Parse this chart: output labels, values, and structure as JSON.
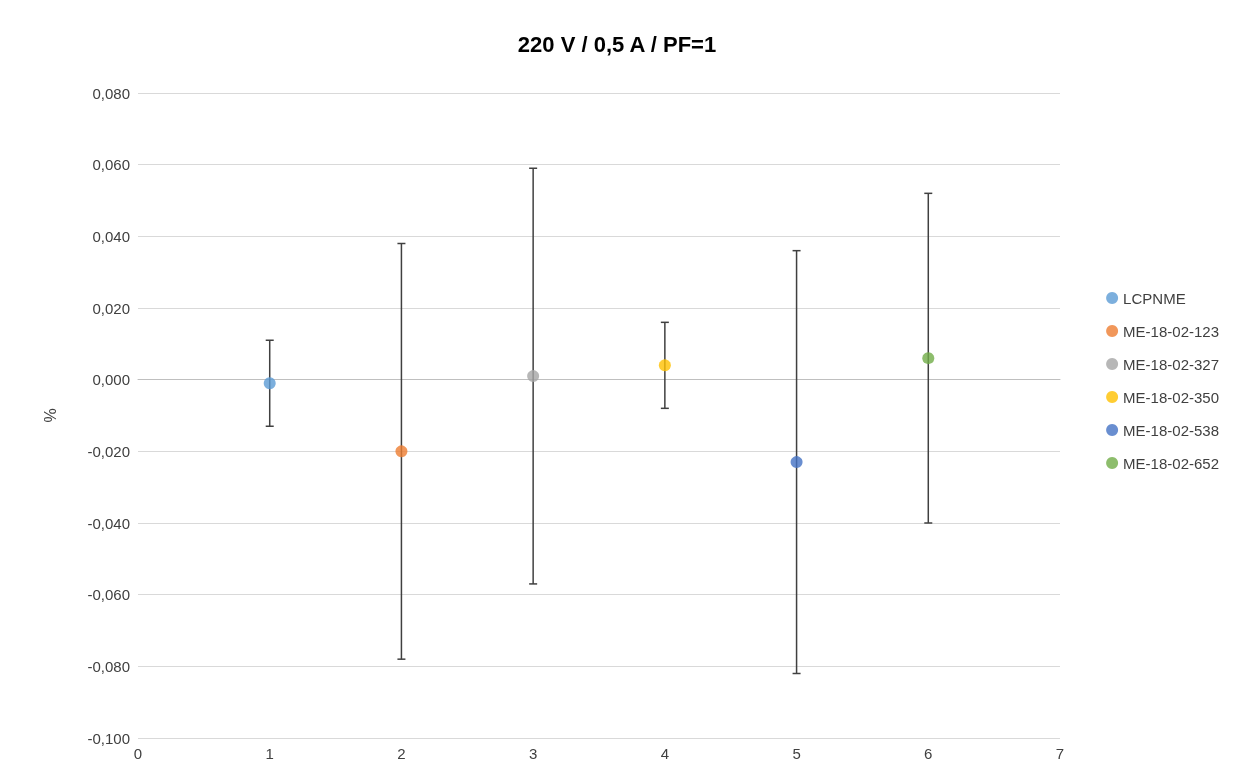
{
  "chart_data": {
    "type": "scatter",
    "title": "220 V / 0,5 A / PF=1",
    "ylabel": "%",
    "series": [
      {
        "name": "LCPNME",
        "color": "#5b9bd5",
        "x": [
          1
        ],
        "values": [
          -0.001
        ],
        "errors": [
          0.012
        ]
      },
      {
        "name": "ME-18-02-123",
        "color": "#ed7d31",
        "x": [
          2
        ],
        "values": [
          -0.02
        ],
        "errors": [
          0.058
        ]
      },
      {
        "name": "ME-18-02-327",
        "color": "#a5a5a5",
        "x": [
          3
        ],
        "values": [
          0.001
        ],
        "errors": [
          0.058
        ]
      },
      {
        "name": "ME-18-02-350",
        "color": "#ffc000",
        "x": [
          4
        ],
        "values": [
          0.004
        ],
        "errors": [
          0.012
        ]
      },
      {
        "name": "ME-18-02-538",
        "color": "#4472c4",
        "x": [
          5
        ],
        "values": [
          -0.023
        ],
        "errors": [
          0.059
        ]
      },
      {
        "name": "ME-18-02-652",
        "color": "#70ad47",
        "x": [
          6
        ],
        "values": [
          0.006
        ],
        "errors": [
          0.046
        ]
      }
    ],
    "xlim": [
      0,
      7
    ],
    "xticks": [
      0,
      1,
      2,
      3,
      4,
      5,
      6,
      7
    ],
    "ylim": [
      -0.1,
      0.08
    ],
    "yticks": [
      {
        "value": -0.1,
        "label": "-0,100"
      },
      {
        "value": -0.08,
        "label": "-0,080"
      },
      {
        "value": -0.06,
        "label": "-0,060"
      },
      {
        "value": -0.04,
        "label": "-0,040"
      },
      {
        "value": -0.02,
        "label": "-0,020"
      },
      {
        "value": 0,
        "label": "0,000"
      },
      {
        "value": 0.02,
        "label": "0,020"
      },
      {
        "value": 0.04,
        "label": "0,040"
      },
      {
        "value": 0.06,
        "label": "0,060"
      },
      {
        "value": 0.08,
        "label": "0,080"
      }
    ],
    "grid": "y",
    "legend": "right",
    "marker": "circle"
  }
}
